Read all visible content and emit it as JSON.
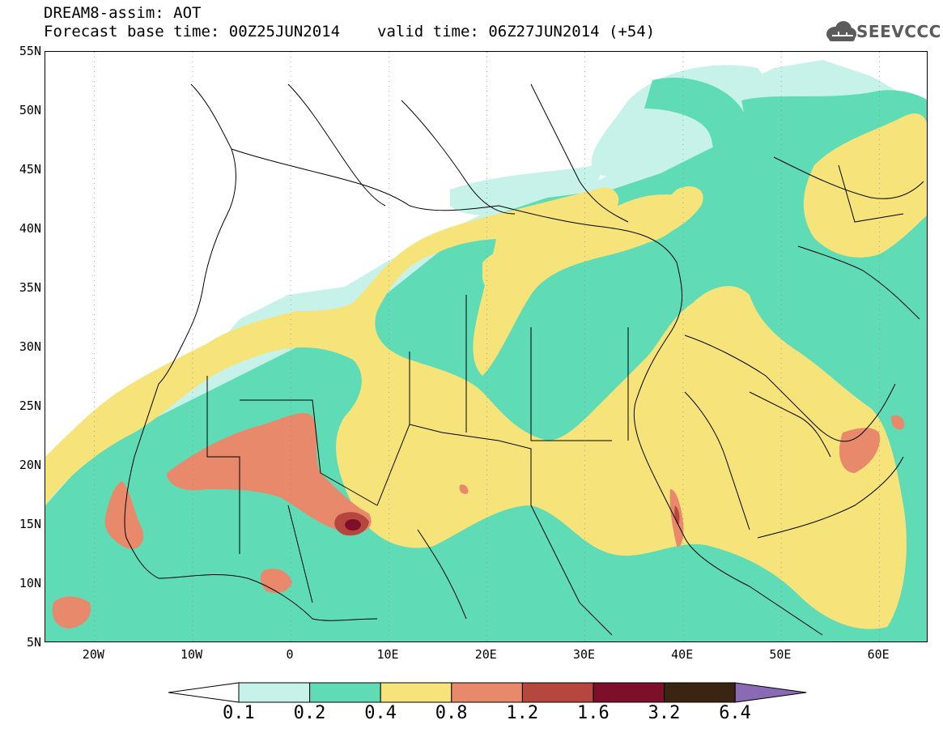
{
  "header": {
    "title_line1": "DREAM8-assim: AOT",
    "base_time": "Forecast base time: 00Z25JUN2014",
    "valid_time": "valid time: 06Z27JUN2014 (+54)",
    "logo_text": "SEEVCCC"
  },
  "map": {
    "lon_range": [
      -25,
      65
    ],
    "lat_range": [
      5,
      55
    ],
    "lat_labels": [
      "55N",
      "50N",
      "45N",
      "40N",
      "35N",
      "30N",
      "25N",
      "20N",
      "15N",
      "10N",
      "5N"
    ],
    "lon_labels": [
      "20W",
      "10W",
      "0",
      "10E",
      "20E",
      "30E",
      "40E",
      "50E",
      "60E"
    ]
  },
  "legend": {
    "levels": [
      "0.1",
      "0.2",
      "0.4",
      "0.8",
      "1.2",
      "1.6",
      "3.2",
      "6.4"
    ],
    "colors": [
      "#c7f2ea",
      "#5fdcb6",
      "#f6e47a",
      "#e8896b",
      "#b5473e",
      "#7d0f2a",
      "#3b2512",
      "#8a6ab4"
    ]
  }
}
